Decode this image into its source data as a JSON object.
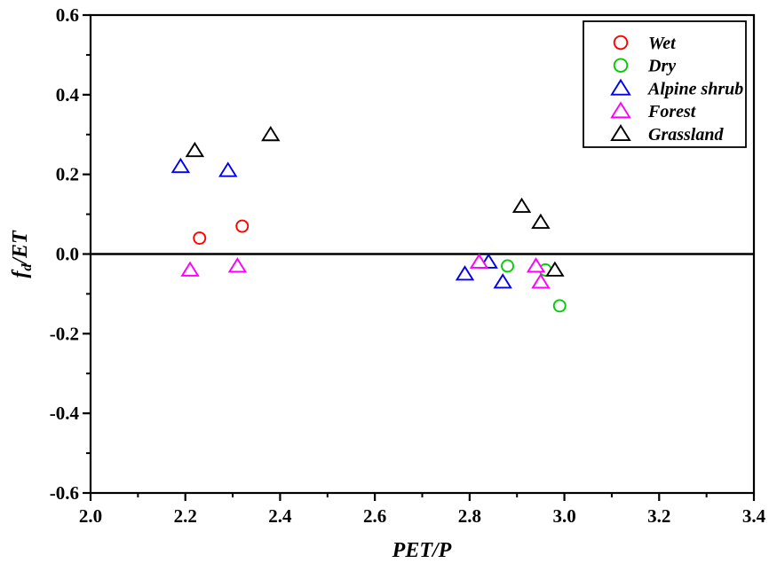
{
  "figure": {
    "background": "#ffffff",
    "axis_color": "#000000",
    "text_color": "#000000"
  },
  "chart_data": {
    "type": "scatter",
    "title": "",
    "xlabel": "PET/P",
    "ylabel": "f_d/ET",
    "ylabel_parts": {
      "main": "f",
      "sub": "d",
      "rest": "/ET"
    },
    "xlim": [
      2.0,
      3.4
    ],
    "ylim": [
      -0.6,
      0.6
    ],
    "x_major_ticks": [
      2.0,
      2.2,
      2.4,
      2.6,
      2.8,
      3.0,
      3.2,
      3.4
    ],
    "x_minor_ticks": [
      2.1,
      2.3,
      2.5,
      2.7,
      2.9,
      3.1,
      3.3
    ],
    "y_major_ticks": [
      0.6,
      0.4,
      0.2,
      0.0,
      -0.2,
      -0.4,
      -0.6
    ],
    "y_minor_ticks": [
      0.5,
      0.3,
      0.1,
      -0.1,
      -0.3,
      -0.5
    ],
    "tick_decimals": 1,
    "grid": false,
    "zero_line_y": 0.0,
    "legend_position": "top-right",
    "series": [
      {
        "name": "Wet",
        "marker": "circle",
        "color": "#ff0000",
        "points": [
          [
            2.23,
            0.04
          ],
          [
            2.32,
            0.07
          ]
        ]
      },
      {
        "name": "Dry",
        "marker": "circle",
        "color": "#00cc00",
        "points": [
          [
            2.88,
            -0.03
          ],
          [
            2.96,
            -0.04
          ],
          [
            2.99,
            -0.13
          ]
        ]
      },
      {
        "name": "Alpine shrub",
        "marker": "triangle",
        "color": "#0000ee",
        "points": [
          [
            2.19,
            0.22
          ],
          [
            2.29,
            0.21
          ],
          [
            2.79,
            -0.05
          ],
          [
            2.84,
            -0.02
          ],
          [
            2.87,
            -0.07
          ]
        ]
      },
      {
        "name": "Forest",
        "marker": "triangle",
        "color": "#ff00ff",
        "points": [
          [
            2.21,
            -0.04
          ],
          [
            2.31,
            -0.03
          ],
          [
            2.82,
            -0.02
          ],
          [
            2.94,
            -0.03
          ],
          [
            2.95,
            -0.07
          ]
        ]
      },
      {
        "name": "Grassland",
        "marker": "triangle",
        "color": "#000000",
        "points": [
          [
            2.22,
            0.26
          ],
          [
            2.38,
            0.3
          ],
          [
            2.91,
            0.12
          ],
          [
            2.95,
            0.08
          ],
          [
            2.98,
            -0.04
          ]
        ]
      }
    ]
  }
}
